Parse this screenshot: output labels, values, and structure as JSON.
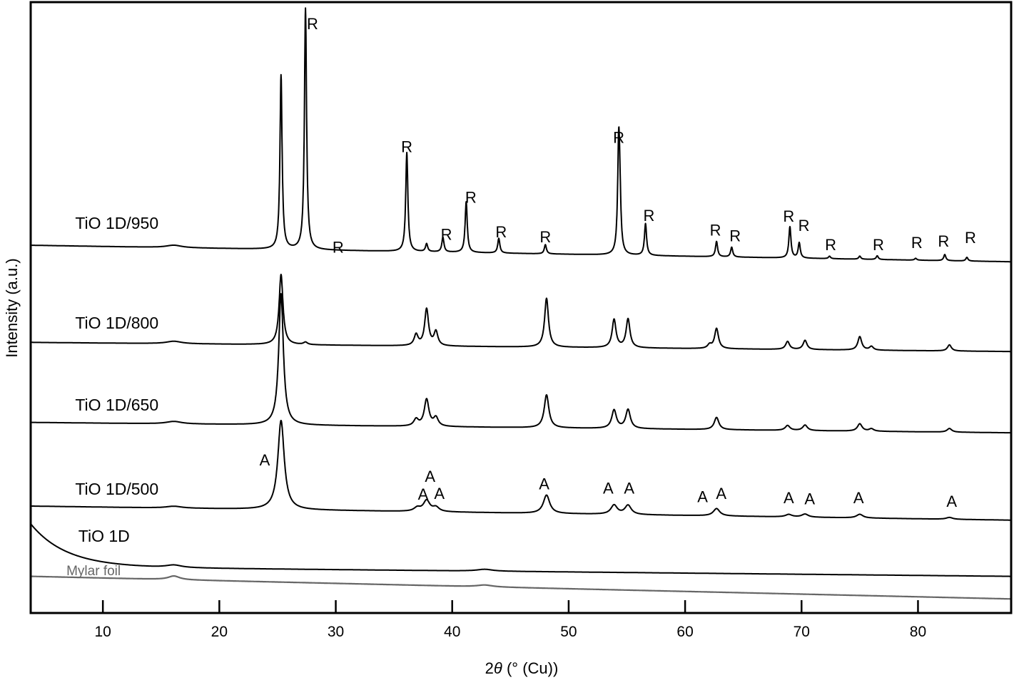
{
  "chart_data": {
    "type": "line",
    "title": "",
    "xlabel_prefix": "2",
    "xlabel_theta": "θ",
    "xlabel_suffix": " (° (Cu))",
    "ylabel": "Intensity (a.u.)",
    "xlim": [
      3.8,
      88
    ],
    "ylim": [
      0,
      100
    ],
    "xticks": [
      10,
      20,
      30,
      40,
      50,
      60,
      70,
      80
    ],
    "grid": false,
    "series": [
      {
        "name": "TiO 1D/950",
        "label_pos": [
          11.2,
          63.8
        ],
        "color": "#000000",
        "baseline": [
          60.2,
          57.5
        ],
        "exp": [
          0,
          1
        ],
        "width": 0.11,
        "peaks": [
          [
            16.1,
            0.4,
            0.8
          ],
          [
            25.3,
            28.5
          ],
          [
            27.4,
            39.5
          ],
          [
            36.1,
            16.2
          ],
          [
            37.8,
            1.3
          ],
          [
            39.2,
            2.4
          ],
          [
            41.2,
            8.3
          ],
          [
            44.0,
            2.4
          ],
          [
            48.0,
            1.5
          ],
          [
            54.3,
            17.6
          ],
          [
            54.4,
            6
          ],
          [
            56.6,
            5.2
          ],
          [
            62.7,
            2.5
          ],
          [
            64.0,
            1.6
          ],
          [
            69.0,
            5.1
          ],
          [
            69.8,
            2.5
          ],
          [
            72.4,
            0.4
          ],
          [
            75.0,
            0.5
          ],
          [
            76.5,
            0.6
          ],
          [
            79.8,
            0.3
          ],
          [
            82.3,
            1.0
          ],
          [
            84.2,
            0.6
          ]
        ]
      },
      {
        "name": "TiO 1D/800",
        "label_pos": [
          11.2,
          47.5
        ],
        "color": "#000000",
        "baseline": [
          44.3,
          42.8
        ],
        "exp": [
          0,
          1
        ],
        "width": 0.2,
        "peaks": [
          [
            16.1,
            0.4,
            0.8
          ],
          [
            25.3,
            11.5
          ],
          [
            27.4,
            0.4
          ],
          [
            36.9,
            1.8
          ],
          [
            37.8,
            6.0
          ],
          [
            38.6,
            2.3
          ],
          [
            48.1,
            8.0
          ],
          [
            53.9,
            4.6
          ],
          [
            55.1,
            4.7
          ],
          [
            62.1,
            0.6
          ],
          [
            62.7,
            3.3
          ],
          [
            68.8,
            1.3
          ],
          [
            70.3,
            1.5
          ],
          [
            75.0,
            2.2
          ],
          [
            76.0,
            0.6
          ],
          [
            82.7,
            1.0
          ]
        ]
      },
      {
        "name": "TiO 1D/650",
        "label_pos": [
          11.2,
          34.1
        ],
        "color": "#000000",
        "baseline": [
          31.2,
          29.5
        ],
        "exp": [
          0,
          1
        ],
        "width": 0.24,
        "peaks": [
          [
            16.1,
            0.4,
            0.8
          ],
          [
            25.3,
            21.5
          ],
          [
            36.9,
            1.1
          ],
          [
            37.8,
            4.4
          ],
          [
            38.6,
            1.4
          ],
          [
            48.1,
            5.4
          ],
          [
            53.9,
            3.0
          ],
          [
            55.1,
            3.1
          ],
          [
            62.7,
            2.0
          ],
          [
            68.8,
            0.8
          ],
          [
            70.3,
            0.9
          ],
          [
            75.0,
            1.2
          ],
          [
            76.0,
            0.4
          ],
          [
            82.7,
            0.6
          ]
        ]
      },
      {
        "name": "TiO 1D/500",
        "label_pos": [
          11.2,
          20.3
        ],
        "color": "#000000",
        "baseline": [
          17.5,
          15.2
        ],
        "exp": [
          0,
          1
        ],
        "width": 0.33,
        "peaks": [
          [
            16.1,
            0.3,
            0.8
          ],
          [
            25.3,
            14.6
          ],
          [
            37.0,
            0.6
          ],
          [
            37.8,
            1.8
          ],
          [
            38.6,
            0.7
          ],
          [
            48.1,
            3.0
          ],
          [
            53.9,
            1.5
          ],
          [
            55.1,
            1.5
          ],
          [
            62.7,
            1.2
          ],
          [
            68.9,
            0.4
          ],
          [
            70.3,
            0.5
          ],
          [
            75.0,
            0.6
          ],
          [
            82.7,
            0.3
          ]
        ]
      },
      {
        "name": "TiO 1D",
        "label_pos": [
          10.1,
          12.6
        ],
        "color": "#000000",
        "baseline": [
          7.6,
          6.0
        ],
        "exp": [
          7.0,
          3.0
        ],
        "width": 0.8,
        "peaks": [
          [
            16.1,
            0.4,
            0.8
          ],
          [
            42.8,
            0.3,
            0.8
          ]
        ]
      },
      {
        "name": "Mylar foil",
        "label_pos": [
          9.2,
          7.1
        ],
        "color": "#666666",
        "baseline": [
          6.0,
          2.3
        ],
        "exp": [
          0,
          1
        ],
        "width": 0.8,
        "peaks": [
          [
            16.1,
            0.6,
            0.6
          ],
          [
            42.8,
            0.3,
            0.8
          ]
        ]
      }
    ],
    "annotations": [
      {
        "text": "R",
        "x": 28.0,
        "y": 96.5
      },
      {
        "text": "R",
        "x": 30.2,
        "y": 59.9
      },
      {
        "text": "R",
        "x": 36.1,
        "y": 76.4
      },
      {
        "text": "R",
        "x": 39.5,
        "y": 62.0
      },
      {
        "text": "R",
        "x": 41.6,
        "y": 68.1
      },
      {
        "text": "R",
        "x": 44.2,
        "y": 62.4
      },
      {
        "text": "R",
        "x": 48.0,
        "y": 61.6
      },
      {
        "text": "R",
        "x": 54.3,
        "y": 77.9
      },
      {
        "text": "R",
        "x": 56.9,
        "y": 65.1
      },
      {
        "text": "R",
        "x": 62.6,
        "y": 62.7
      },
      {
        "text": "R",
        "x": 64.3,
        "y": 61.8
      },
      {
        "text": "R",
        "x": 68.9,
        "y": 65.0
      },
      {
        "text": "R",
        "x": 70.2,
        "y": 63.5
      },
      {
        "text": "R",
        "x": 72.5,
        "y": 60.3
      },
      {
        "text": "R",
        "x": 76.6,
        "y": 60.3
      },
      {
        "text": "R",
        "x": 79.9,
        "y": 60.7
      },
      {
        "text": "R",
        "x": 82.2,
        "y": 60.9
      },
      {
        "text": "R",
        "x": 84.5,
        "y": 61.5
      },
      {
        "text": "A",
        "x": 23.9,
        "y": 25.1
      },
      {
        "text": "A",
        "x": 37.5,
        "y": 19.5
      },
      {
        "text": "A",
        "x": 38.1,
        "y": 22.4
      },
      {
        "text": "A",
        "x": 38.9,
        "y": 19.6
      },
      {
        "text": "A",
        "x": 47.9,
        "y": 21.2
      },
      {
        "text": "A",
        "x": 53.4,
        "y": 20.5
      },
      {
        "text": "A",
        "x": 55.2,
        "y": 20.5
      },
      {
        "text": "A",
        "x": 61.5,
        "y": 19.1
      },
      {
        "text": "A",
        "x": 63.1,
        "y": 19.6
      },
      {
        "text": "A",
        "x": 68.9,
        "y": 18.9
      },
      {
        "text": "A",
        "x": 70.7,
        "y": 18.7
      },
      {
        "text": "A",
        "x": 74.9,
        "y": 18.9
      },
      {
        "text": "A",
        "x": 82.9,
        "y": 18.3
      }
    ]
  }
}
